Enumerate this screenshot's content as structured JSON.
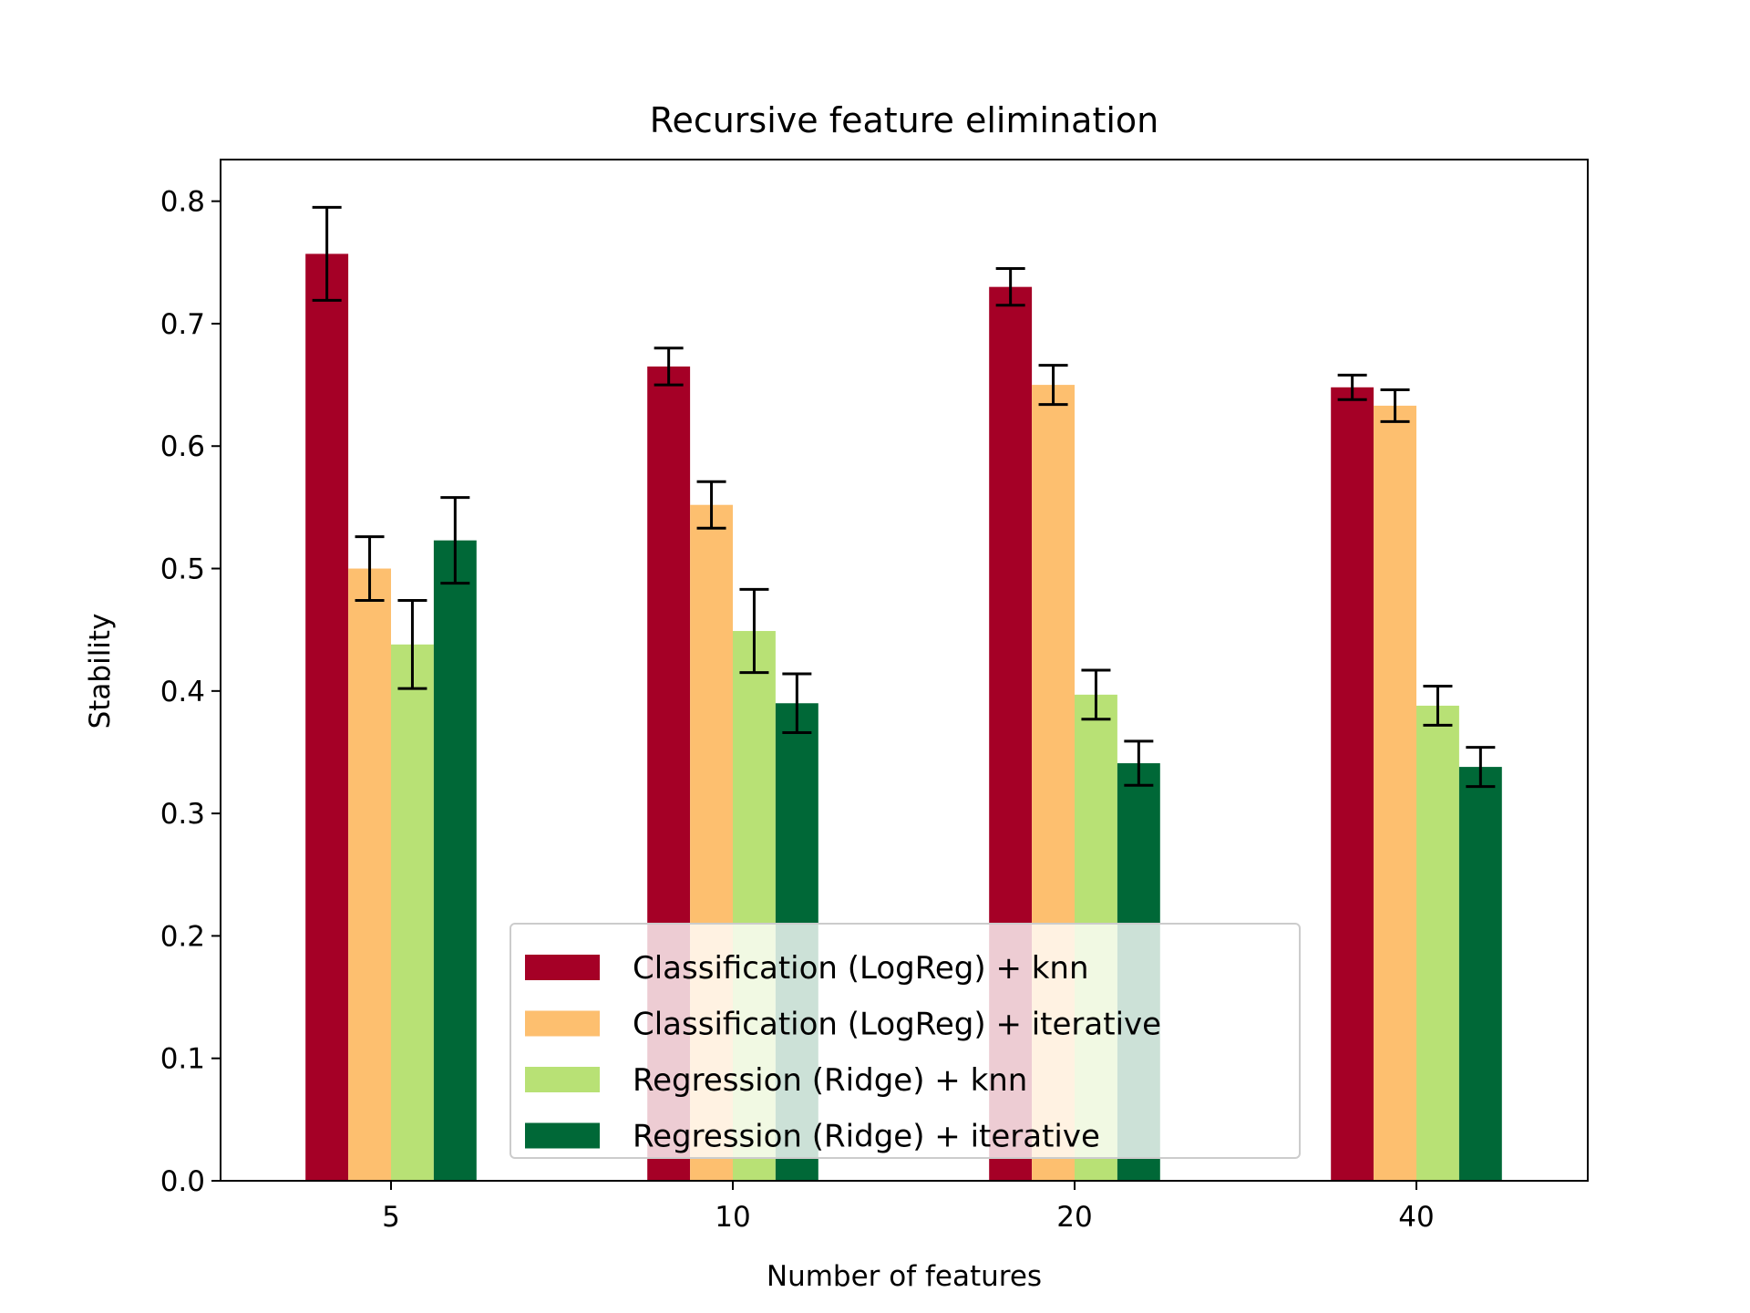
{
  "chart_data": {
    "type": "bar",
    "title": "Recursive feature elimination",
    "xlabel": "Number of features",
    "ylabel": "Stability",
    "categories": [
      "5",
      "10",
      "20",
      "40"
    ],
    "ylim": [
      0.0,
      0.834
    ],
    "yticks": [
      "0.0",
      "0.1",
      "0.2",
      "0.3",
      "0.4",
      "0.5",
      "0.6",
      "0.7",
      "0.8"
    ],
    "grid": false,
    "legend_position": "lower-center",
    "series": [
      {
        "name": "Classification (LogReg) + knn",
        "color": "#a50026",
        "values": [
          0.757,
          0.665,
          0.73,
          0.648
        ],
        "errors": [
          0.038,
          0.015,
          0.015,
          0.01
        ]
      },
      {
        "name": "Classification (LogReg) + iterative",
        "color": "#fdbf6f",
        "values": [
          0.5,
          0.552,
          0.65,
          0.633
        ],
        "errors": [
          0.026,
          0.019,
          0.016,
          0.013
        ]
      },
      {
        "name": "Regression (Ridge) + knn",
        "color": "#b8e175",
        "values": [
          0.438,
          0.449,
          0.397,
          0.388
        ],
        "errors": [
          0.036,
          0.034,
          0.02,
          0.016
        ]
      },
      {
        "name": "Regression (Ridge) + iterative",
        "color": "#006837",
        "values": [
          0.523,
          0.39,
          0.341,
          0.338
        ],
        "errors": [
          0.035,
          0.024,
          0.018,
          0.016
        ]
      }
    ]
  }
}
